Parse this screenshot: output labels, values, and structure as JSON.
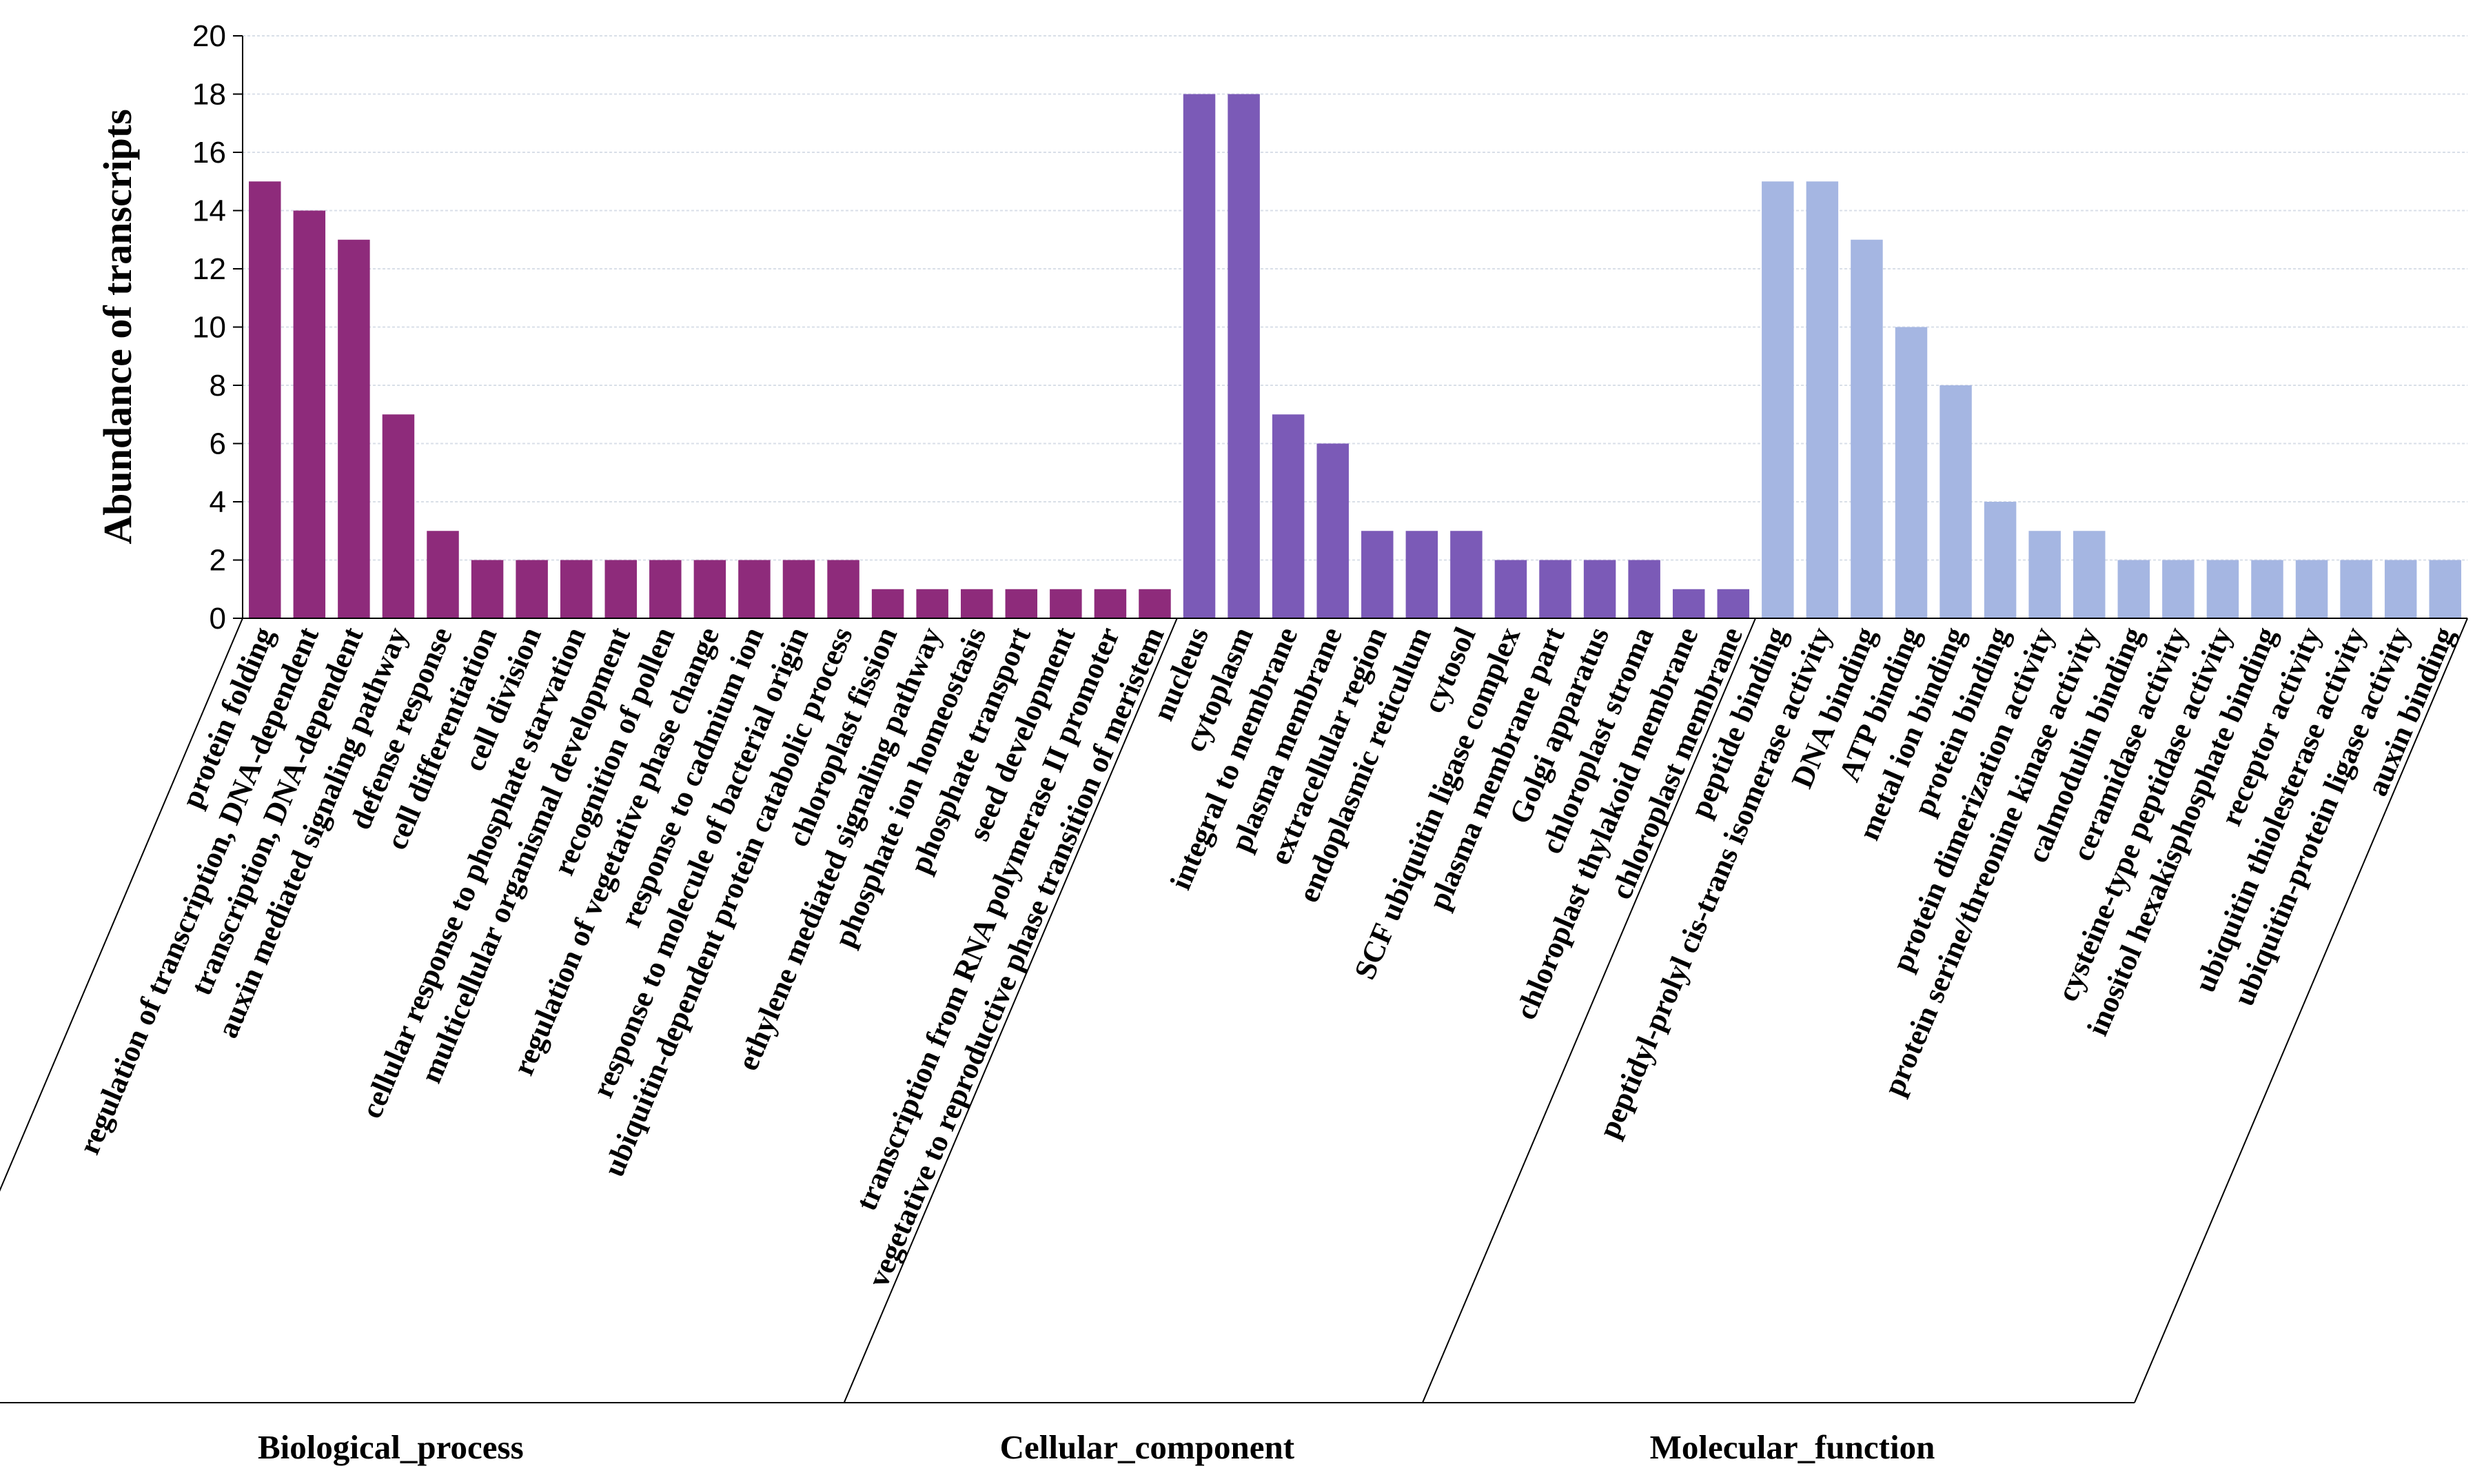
{
  "chart_data": {
    "type": "bar",
    "ylabel": "Abundance of transcripts",
    "ylim": [
      0,
      20
    ],
    "yticks": [
      "0",
      "2",
      "4",
      "6",
      "8",
      "10",
      "12",
      "14",
      "16",
      "18",
      "20"
    ],
    "grid": true,
    "groups": [
      {
        "name": "Biological_process",
        "color": "#8e2b7b",
        "categories": [
          "protein folding",
          "regulation of transcription, DNA-dependent",
          "transcription, DNA-dependent",
          "auxin mediated signaling pathway",
          "defense response",
          "cell differentiation",
          "cell division",
          "cellular response to phosphate starvation",
          "multicellular organismal development",
          "recognition of pollen",
          "regulation of vegetative phase change",
          "response to cadmium ion",
          "response to molecule of bacterial origin",
          "ubiquitin-dependent protein catabolic process",
          "chloroplast fission",
          "ethylene mediated signaling pathway",
          "phosphate ion homeostasis",
          "phosphate transport",
          "seed development",
          "transcription from RNA polymerase II promoter",
          "vegetative to reproductive phase transition of meristem"
        ],
        "values": [
          15,
          14,
          13,
          7,
          3,
          2,
          2,
          2,
          2,
          2,
          2,
          2,
          2,
          2,
          1,
          1,
          1,
          1,
          1,
          1,
          1
        ]
      },
      {
        "name": "Cellular_component",
        "color": "#7b5ab7",
        "categories": [
          "nucleus",
          "cytoplasm",
          "integral to membrane",
          "plasma membrane",
          "extracellular region",
          "endoplasmic reticulum",
          "cytosol",
          "SCF ubiquitin ligase complex",
          "plasma membrane part",
          "Golgi apparatus",
          "chloroplast stroma",
          "chloroplast thylakoid membrane",
          "chloroplast membrane"
        ],
        "values": [
          18,
          18,
          7,
          6,
          3,
          3,
          3,
          2,
          2,
          2,
          2,
          1,
          1
        ]
      },
      {
        "name": "Molecular_function",
        "color": "#a5b6e2",
        "categories": [
          "peptide binding",
          "peptidyl-prolyl cis-trans isomerase activity",
          "DNA binding",
          "ATP binding",
          "metal ion binding",
          "protein binding",
          "protein dimerization activity",
          "protein serine/threonine kinase activity",
          "calmodulin binding",
          "ceramidase activity",
          "cysteine-type peptidase activity",
          "inositol hexakisphosphate binding",
          "receptor activity",
          "ubiquitin thiolesterase activity",
          "ubiquitin-protein ligase activity",
          "auxin binding"
        ],
        "values": [
          15,
          15,
          13,
          10,
          8,
          4,
          3,
          3,
          2,
          2,
          2,
          2,
          2,
          2,
          2,
          2
        ]
      }
    ]
  }
}
